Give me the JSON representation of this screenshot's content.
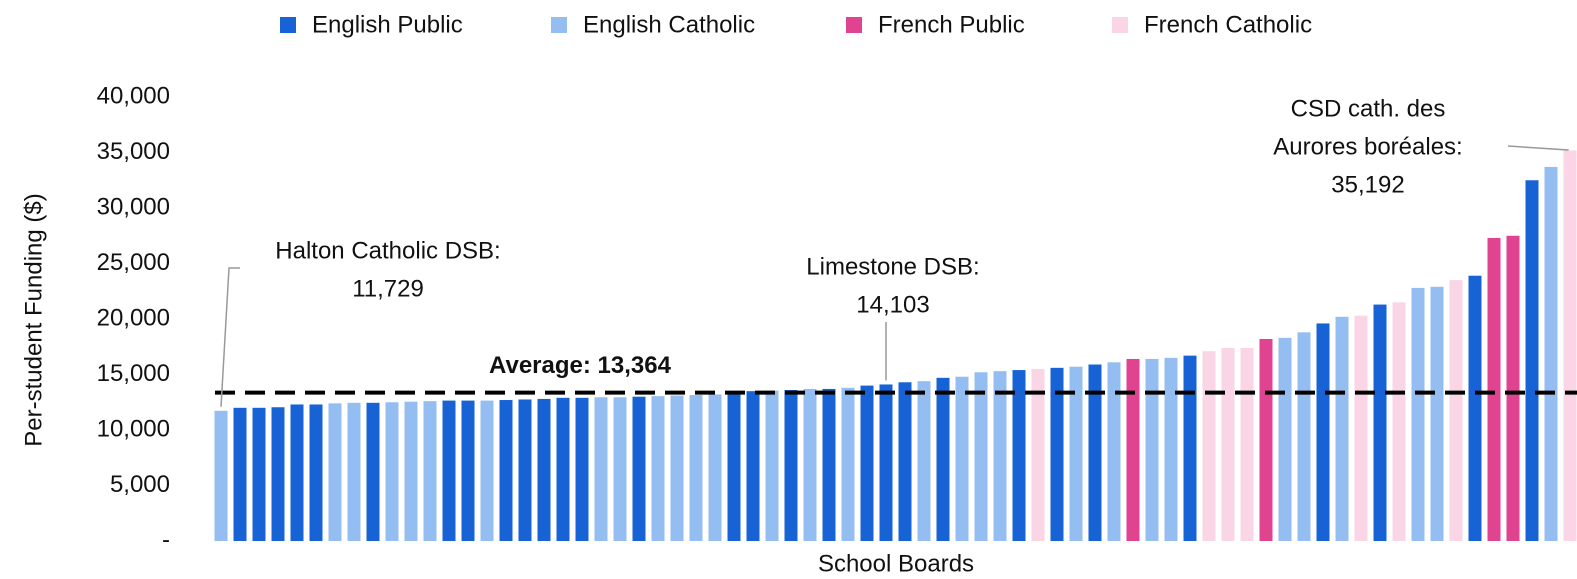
{
  "chart_data": {
    "type": "bar",
    "y_label": "Per-student Funding ($)",
    "x_label": "School Boards",
    "categories": [
      null,
      null,
      null,
      null,
      null,
      null,
      null,
      null,
      null,
      null,
      null,
      null,
      null,
      null,
      null,
      null,
      null,
      null,
      null,
      null,
      null,
      null,
      null,
      null,
      null,
      null,
      null,
      null,
      null,
      null,
      null,
      null,
      null,
      null,
      null,
      null,
      null,
      null,
      null,
      null,
      null,
      null,
      null,
      null,
      null,
      null,
      null,
      null,
      null,
      null,
      null,
      null,
      null,
      null,
      null,
      null,
      null,
      null,
      null,
      null,
      null,
      null,
      null,
      null,
      null,
      null,
      null,
      null,
      null,
      null,
      null,
      null
    ],
    "series": [
      {
        "name": "English Public",
        "color": "#1763d6",
        "values": [
          null,
          12000,
          12000,
          12050,
          12300,
          12300,
          null,
          null,
          12450,
          null,
          null,
          null,
          12650,
          12650,
          null,
          12700,
          12750,
          12800,
          12900,
          12900,
          null,
          null,
          13000,
          null,
          null,
          null,
          null,
          13350,
          13500,
          null,
          13600,
          null,
          13700,
          null,
          14000,
          14103,
          14300,
          null,
          14700,
          null,
          null,
          null,
          15400,
          null,
          15600,
          null,
          15900,
          null,
          null,
          null,
          null,
          16700,
          null,
          null,
          null,
          null,
          null,
          null,
          19600,
          null,
          null,
          21300,
          null,
          null,
          null,
          null,
          23900,
          null,
          null,
          32500,
          null,
          null
        ]
      },
      {
        "name": "English Catholic",
        "color": "#94bdf2",
        "values": [
          11729,
          null,
          null,
          null,
          null,
          null,
          12400,
          12450,
          null,
          12500,
          12550,
          12600,
          null,
          null,
          12650,
          null,
          null,
          null,
          null,
          null,
          12950,
          12950,
          null,
          13050,
          13100,
          13150,
          13200,
          null,
          null,
          13550,
          null,
          13700,
          null,
          13800,
          null,
          null,
          null,
          14400,
          null,
          14800,
          15200,
          15300,
          null,
          null,
          null,
          15700,
          null,
          16100,
          null,
          16400,
          16500,
          null,
          null,
          null,
          null,
          null,
          18300,
          18800,
          null,
          20200,
          null,
          null,
          null,
          22800,
          22900,
          null,
          null,
          null,
          null,
          null,
          33700,
          null
        ]
      },
      {
        "name": "French Public",
        "color": "#e0438f",
        "values": [
          null,
          null,
          null,
          null,
          null,
          null,
          null,
          null,
          null,
          null,
          null,
          null,
          null,
          null,
          null,
          null,
          null,
          null,
          null,
          null,
          null,
          null,
          null,
          null,
          null,
          null,
          null,
          null,
          null,
          null,
          null,
          null,
          null,
          null,
          null,
          null,
          null,
          null,
          null,
          null,
          null,
          null,
          null,
          null,
          null,
          null,
          null,
          null,
          16400,
          null,
          null,
          null,
          null,
          null,
          null,
          18200,
          null,
          null,
          null,
          null,
          null,
          null,
          null,
          null,
          null,
          null,
          null,
          27300,
          27500,
          null,
          null,
          null
        ]
      },
      {
        "name": "French Catholic",
        "color": "#f9d5e6",
        "values": [
          null,
          null,
          null,
          null,
          null,
          null,
          null,
          null,
          null,
          null,
          null,
          null,
          null,
          null,
          null,
          null,
          null,
          null,
          null,
          null,
          null,
          null,
          null,
          null,
          null,
          null,
          null,
          null,
          null,
          null,
          null,
          null,
          null,
          null,
          null,
          null,
          null,
          null,
          null,
          null,
          null,
          null,
          null,
          15500,
          null,
          null,
          null,
          null,
          null,
          null,
          null,
          null,
          17100,
          17400,
          17400,
          null,
          null,
          null,
          null,
          null,
          20300,
          null,
          21500,
          null,
          null,
          23500,
          null,
          null,
          null,
          null,
          null,
          35192
        ]
      }
    ],
    "ylim": [
      0,
      40000
    ],
    "yticks": [
      {
        "value": 0,
        "label": "-"
      },
      {
        "value": 5000,
        "label": "5,000"
      },
      {
        "value": 10000,
        "label": "10,000"
      },
      {
        "value": 15000,
        "label": "15,000"
      },
      {
        "value": 20000,
        "label": "20,000"
      },
      {
        "value": 25000,
        "label": "25,000"
      },
      {
        "value": 30000,
        "label": "30,000"
      },
      {
        "value": 35000,
        "label": "35,000"
      },
      {
        "value": 40000,
        "label": "40,000"
      }
    ],
    "grid": false,
    "legend": "top",
    "average": {
      "value": 13364,
      "label": "Average: 13,364"
    },
    "annotations": [
      {
        "lines": [
          "Halton Catholic DSB:"
        ],
        "value": 11729,
        "value_label": "11,729"
      },
      {
        "lines": [
          "Limestone DSB:"
        ],
        "value": 14103,
        "value_label": "14,103"
      },
      {
        "lines": [
          "CSD cath. des",
          "Aurores boréales:"
        ],
        "value": 35192,
        "value_label": "35,192"
      }
    ]
  }
}
